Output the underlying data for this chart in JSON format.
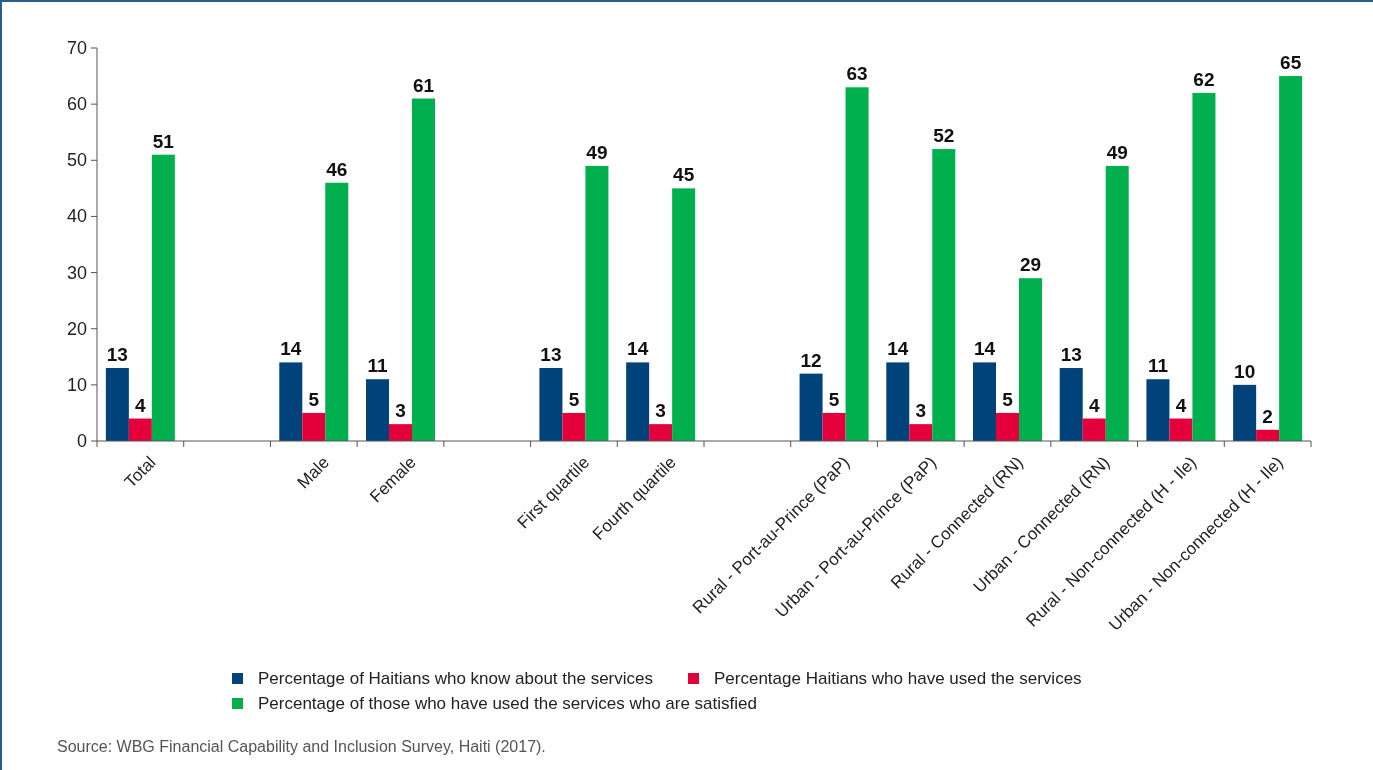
{
  "chart_data": {
    "type": "bar",
    "categories": [
      "Total",
      null,
      "Male",
      "Female",
      null,
      "First quartile",
      "Fourth quartile",
      null,
      "Rural - Port-au-Prince (PaP)",
      "Urban - Port-au-Prince (PaP)",
      "Rural - Connected (RN)",
      "Urban - Connected (RN)",
      "Rural - Non-connected (H - Ile)",
      "Urban - Non-connected (H - Ile)"
    ],
    "series": [
      {
        "name": "Percentage of Haitians who know about the services",
        "color": "#00427a",
        "values": [
          13,
          null,
          14,
          11,
          null,
          13,
          14,
          null,
          12,
          14,
          14,
          13,
          11,
          10
        ]
      },
      {
        "name": "Percentage Haitians who have used the services",
        "color": "#e4003b",
        "values": [
          4,
          null,
          5,
          3,
          null,
          5,
          3,
          null,
          5,
          3,
          5,
          4,
          4,
          2
        ]
      },
      {
        "name": "Percentage of those who have used the services who are satisfied",
        "color": "#00b04f",
        "values": [
          51,
          null,
          46,
          61,
          null,
          49,
          45,
          null,
          63,
          52,
          29,
          49,
          62,
          65
        ]
      }
    ],
    "ylim": [
      0,
      70
    ],
    "yticks": [
      0,
      10,
      20,
      30,
      40,
      50,
      60,
      70
    ],
    "data_labels": true,
    "legend": "bottom",
    "grid": false,
    "annotations": [
      "Source: WBG Financial Capability and Inclusion Survey, Haiti (2017)."
    ]
  }
}
